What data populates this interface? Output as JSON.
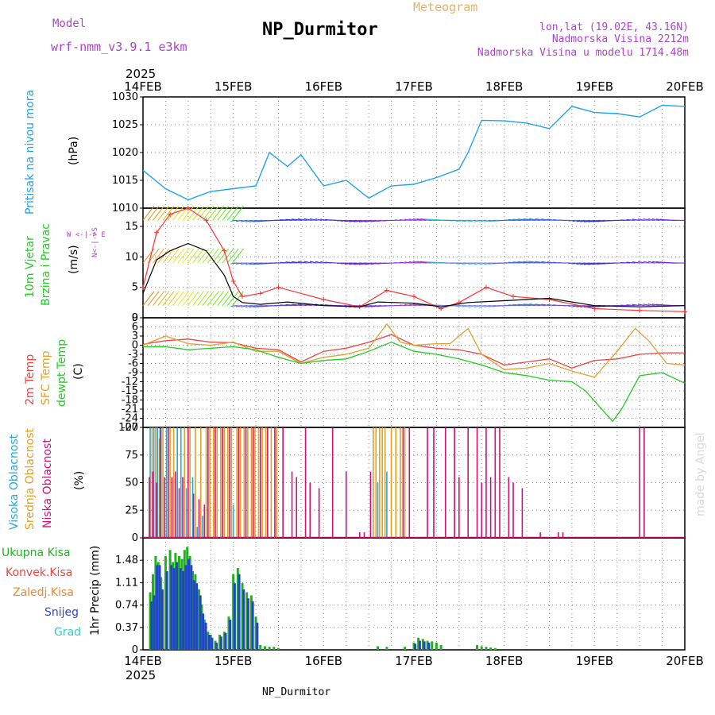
{
  "header": {
    "model_label": "Model",
    "model_name": "wrf-nmm_v3.9.1 e3km",
    "station": "NP_Durmitor",
    "product": "Meteogram",
    "lonlat": "lon,lat (19.02E, 43.16N)",
    "elevation": "Nadmorska Visina 2212m",
    "model_elevation": "Nadmorska Visina u modelu 1714.48m",
    "footer_station": "NP_Durmitor",
    "watermark": "made by Angel"
  },
  "time_axis": {
    "year": "2025",
    "labels": [
      "14FEB",
      "15FEB",
      "16FEB",
      "17FEB",
      "18FEB",
      "19FEB",
      "20FEB"
    ]
  },
  "colors": {
    "pressure": "#1fa3e8",
    "wind_speed": "#000000",
    "wind_gust": "#ff3030",
    "t2m": "#ee4444",
    "tsfc": "#e0a030",
    "dewpoint": "#22cc22",
    "high_cloud": "#22a8e0",
    "mid_cloud": "#e0a020",
    "low_cloud": "#cc1177",
    "precip_total": "#22b022",
    "precip_snow": "#2244cc",
    "title_purple": "#aa44cc",
    "meteogram_orange": "#e8b060"
  },
  "chart_data": [
    {
      "type": "line",
      "title": "Pritisak na nivou mora",
      "ylabel": "(hPa)",
      "ylim": [
        1010,
        1030
      ],
      "yticks": [
        "1030",
        "1025",
        "1020",
        "1015",
        "1010"
      ],
      "x_days": [
        0,
        0.25,
        0.5,
        0.75,
        1.0,
        1.25,
        1.4,
        1.6,
        1.75,
        2.0,
        2.25,
        2.5,
        2.75,
        3.0,
        3.25,
        3.5,
        3.6,
        3.75,
        4.0,
        4.25,
        4.5,
        4.75,
        5.0,
        5.25,
        5.5,
        5.75,
        6.0
      ],
      "values": [
        1016.8,
        1013.5,
        1011.5,
        1013.0,
        1013.5,
        1014.0,
        1020.0,
        1017.5,
        1019.6,
        1014.0,
        1015.0,
        1011.8,
        1014.0,
        1014.3,
        1015.5,
        1017.0,
        1020.0,
        1025.8,
        1025.7,
        1025.3,
        1024.3,
        1028.3,
        1027.2,
        1027.0,
        1026.4,
        1028.5,
        1028.3
      ]
    },
    {
      "type": "line",
      "title": "10m Vjetar Brzina i Pravac",
      "ylabel": "(m/s)",
      "ylim": [
        0,
        18
      ],
      "yticks": [
        "15",
        "10",
        "5",
        "0"
      ],
      "legend": "N, W E, S",
      "series": [
        {
          "name": "speed",
          "x_days": [
            0,
            0.15,
            0.3,
            0.5,
            0.7,
            0.9,
            1.0,
            1.1,
            1.3,
            1.6,
            2.0,
            2.4,
            2.6,
            3.0,
            3.3,
            3.6,
            4.0,
            4.5,
            5.0,
            5.5,
            6.0
          ],
          "values": [
            4.0,
            9.5,
            11.0,
            12.2,
            11.0,
            7.0,
            3.5,
            2.5,
            2.2,
            2.6,
            2.0,
            1.8,
            2.6,
            2.4,
            1.8,
            2.5,
            2.8,
            3.2,
            2.0,
            1.8,
            2.0
          ]
        },
        {
          "name": "gust",
          "x_days": [
            0,
            0.15,
            0.3,
            0.5,
            0.7,
            0.9,
            1.0,
            1.1,
            1.3,
            1.5,
            2.0,
            2.4,
            2.7,
            3.0,
            3.3,
            3.5,
            3.8,
            4.1,
            4.5,
            5.0,
            5.5,
            6.0
          ],
          "values": [
            5.0,
            14.0,
            17.0,
            18.0,
            16.0,
            11.0,
            6.0,
            3.5,
            4.0,
            5.0,
            3.0,
            1.8,
            4.5,
            3.5,
            1.5,
            2.5,
            5.0,
            3.5,
            3.0,
            1.5,
            1.2,
            1.0
          ]
        }
      ],
      "barb_rows": [
        "top",
        "middle",
        "bottom"
      ]
    },
    {
      "type": "line",
      "title": "2m Temp / SFC Temp / dewpt Temp",
      "ylabel": "(C)",
      "ylim": [
        -27,
        9
      ],
      "yticks": [
        "9",
        "6",
        "3",
        "0",
        "-3",
        "-6",
        "-9",
        "-12",
        "-15",
        "-18",
        "-21",
        "-24",
        "-27"
      ],
      "series": [
        {
          "name": "2m Temp",
          "x_days": [
            0,
            0.25,
            0.5,
            0.75,
            1.0,
            1.25,
            1.5,
            1.75,
            2.0,
            2.25,
            2.5,
            2.75,
            3.0,
            3.25,
            3.5,
            3.75,
            4.0,
            4.25,
            4.5,
            4.75,
            5.0,
            5.25,
            5.5,
            5.75,
            6.0
          ],
          "values": [
            0.3,
            1.5,
            2.0,
            1.0,
            0.8,
            -1.0,
            -1.5,
            -5.5,
            -2.0,
            -1.0,
            1.0,
            3.5,
            0.0,
            -1.0,
            -1.5,
            -3.0,
            -6.5,
            -5.5,
            -4.5,
            -7.5,
            -5.0,
            -4.5,
            -3.0,
            -2.5,
            -2.5
          ]
        },
        {
          "name": "SFC Temp",
          "x_days": [
            0,
            0.25,
            0.5,
            0.75,
            1.0,
            1.25,
            1.5,
            1.75,
            2.0,
            2.25,
            2.5,
            2.7,
            2.85,
            3.0,
            3.25,
            3.4,
            3.6,
            3.75,
            4.0,
            4.25,
            4.5,
            4.75,
            5.0,
            5.25,
            5.45,
            5.6,
            5.8,
            6.0
          ],
          "values": [
            0.0,
            3.0,
            0.5,
            0.0,
            1.0,
            -2.0,
            -2.0,
            -6.0,
            -4.0,
            -3.0,
            -1.0,
            7.0,
            1.0,
            0.0,
            0.5,
            0.5,
            5.5,
            -3.0,
            -8.0,
            -7.5,
            -6.0,
            -8.5,
            -10.5,
            -2.0,
            5.5,
            1.5,
            -6.0,
            -6.5
          ]
        },
        {
          "name": "dewpt Temp",
          "x_days": [
            0,
            0.25,
            0.5,
            0.75,
            1.0,
            1.25,
            1.5,
            1.75,
            2.0,
            2.25,
            2.5,
            2.75,
            3.0,
            3.25,
            3.5,
            3.75,
            4.0,
            4.25,
            4.5,
            4.75,
            4.9,
            5.05,
            5.2,
            5.3,
            5.5,
            5.75,
            6.0
          ],
          "values": [
            -0.5,
            -0.5,
            -1.5,
            -1.0,
            -0.5,
            -1.5,
            -4.0,
            -6.0,
            -5.0,
            -4.5,
            -2.0,
            1.0,
            -2.0,
            -3.0,
            -4.5,
            -6.5,
            -9.0,
            -10.0,
            -11.5,
            -12.0,
            -15.0,
            -20.0,
            -25.0,
            -21.0,
            -10.0,
            -9.0,
            -12.5
          ]
        }
      ]
    },
    {
      "type": "bar",
      "title": "Visoka / Srednja / Niska Oblacnost",
      "ylabel": "(%)",
      "ylim": [
        0,
        100
      ],
      "yticks": [
        "100",
        "75",
        "50",
        "25",
        "0"
      ],
      "series": [
        {
          "name": "Visoka Oblacnost",
          "x_days": [
            0.08,
            0.12,
            0.16,
            0.2,
            0.26,
            0.38,
            0.42,
            0.48,
            0.55,
            0.6,
            0.66,
            1.0,
            2.6,
            2.7
          ],
          "values": [
            100,
            100,
            100,
            100,
            100,
            100,
            100,
            45,
            55,
            10,
            20,
            30,
            50,
            60
          ]
        },
        {
          "name": "Srednja Oblacnost",
          "x_days": [
            0.1,
            0.14,
            0.18,
            0.22,
            0.3,
            0.34,
            0.46,
            0.52,
            0.58,
            0.64,
            0.7,
            0.74,
            0.78,
            0.82,
            0.86,
            0.9,
            0.94,
            0.98,
            1.04,
            1.08,
            1.12,
            1.16,
            1.2,
            1.24,
            1.28,
            1.32,
            1.36,
            1.42,
            1.48,
            2.55,
            2.58,
            2.62,
            2.65,
            2.68,
            2.75,
            2.8,
            2.85,
            2.9
          ],
          "values": [
            100,
            100,
            90,
            100,
            100,
            100,
            100,
            100,
            100,
            100,
            100,
            100,
            100,
            100,
            100,
            100,
            100,
            100,
            100,
            100,
            100,
            100,
            100,
            100,
            100,
            100,
            100,
            100,
            100,
            100,
            100,
            100,
            100,
            100,
            100,
            100,
            100,
            100
          ]
        },
        {
          "name": "Niska Oblacnost",
          "x_days": [
            0.07,
            0.11,
            0.15,
            0.19,
            0.24,
            0.28,
            0.32,
            0.36,
            0.4,
            0.44,
            0.5,
            0.56,
            0.62,
            0.68,
            0.72,
            0.8,
            0.88,
            0.96,
            1.06,
            1.14,
            1.22,
            1.3,
            1.38,
            1.46,
            1.55,
            1.65,
            1.7,
            1.8,
            1.85,
            1.95,
            2.1,
            2.25,
            2.4,
            2.45,
            2.52,
            2.88,
            2.95,
            3.15,
            3.22,
            3.35,
            3.45,
            3.5,
            3.6,
            3.7,
            3.75,
            3.8,
            3.85,
            3.9,
            3.95,
            4.05,
            4.1,
            4.2,
            4.4,
            4.6,
            4.65,
            5.5,
            5.55
          ],
          "values": [
            55,
            60,
            50,
            100,
            55,
            100,
            55,
            60,
            45,
            55,
            100,
            40,
            35,
            30,
            100,
            100,
            100,
            100,
            100,
            100,
            100,
            100,
            100,
            100,
            100,
            60,
            55,
            100,
            50,
            45,
            100,
            60,
            5,
            5,
            60,
            100,
            100,
            100,
            100,
            100,
            100,
            55,
            100,
            100,
            50,
            100,
            55,
            100,
            100,
            55,
            50,
            45,
            5,
            5,
            5,
            100,
            100
          ]
        }
      ]
    },
    {
      "type": "bar",
      "title": "Ukupna Kisa / Konvek.Kisa / Zaledj.Kisa / Snijeg / Grad",
      "ylabel": "1hr Precip (mm)",
      "ylim": [
        0,
        1.85
      ],
      "yticks": [
        "1.48",
        "1.11",
        "0.74",
        "0.37",
        "0"
      ],
      "series": [
        {
          "name": "Ukupna Kisa",
          "x_days": [
            0.08,
            0.11,
            0.14,
            0.17,
            0.2,
            0.25,
            0.3,
            0.33,
            0.36,
            0.4,
            0.43,
            0.46,
            0.49,
            0.52,
            0.55,
            0.58,
            0.62,
            0.65,
            0.68,
            0.72,
            0.75,
            0.8,
            0.85,
            0.9,
            0.95,
            1.0,
            1.05,
            1.1,
            1.15,
            1.2,
            1.25,
            1.3,
            1.35,
            1.4,
            1.45,
            1.5,
            2.6,
            2.7,
            2.9,
            3.0,
            3.05,
            3.1,
            3.15,
            3.2,
            3.25,
            3.3,
            3.7,
            3.75,
            3.8,
            3.85,
            3.9
          ],
          "values": [
            0.95,
            1.25,
            1.55,
            1.45,
            1.2,
            1.55,
            1.65,
            1.45,
            1.6,
            1.55,
            1.5,
            1.65,
            1.7,
            1.55,
            1.3,
            1.25,
            1.0,
            0.75,
            0.5,
            0.3,
            0.25,
            0.15,
            0.25,
            0.3,
            0.55,
            1.25,
            1.35,
            1.1,
            0.95,
            0.9,
            0.55,
            0.08,
            0.06,
            0.05,
            0.05,
            0.03,
            0.06,
            0.05,
            0.05,
            0.12,
            0.2,
            0.18,
            0.15,
            0.14,
            0.12,
            0.08,
            0.08,
            0.06,
            0.05,
            0.04,
            0.03
          ]
        },
        {
          "name": "Snijeg",
          "x_days": [
            0.095,
            0.125,
            0.155,
            0.185,
            0.215,
            0.265,
            0.315,
            0.345,
            0.375,
            0.415,
            0.445,
            0.475,
            0.505,
            0.535,
            0.565,
            0.595,
            0.635,
            0.665,
            0.695,
            0.735,
            0.765,
            0.815,
            0.865,
            0.915,
            0.965,
            1.015,
            1.065,
            1.115,
            1.165,
            1.215,
            1.265,
            3.015,
            3.065,
            3.115,
            3.165
          ],
          "values": [
            0.8,
            0.9,
            1.4,
            1.4,
            1.0,
            1.3,
            1.4,
            1.35,
            1.45,
            1.35,
            1.3,
            1.4,
            1.5,
            1.4,
            1.15,
            1.1,
            0.9,
            0.6,
            0.45,
            0.25,
            0.2,
            0.12,
            0.22,
            0.28,
            0.5,
            1.1,
            1.25,
            1.0,
            0.85,
            0.8,
            0.45,
            0.1,
            0.15,
            0.14,
            0.12
          ]
        }
      ]
    }
  ],
  "panels": {
    "pressure": {
      "title": "Pritisak na nivou mora",
      "unit": "(hPa)"
    },
    "wind": {
      "title1": "10m Vjetar",
      "title2": "Brzina i Pravac",
      "unit": "(m/s)",
      "compass_ns": "N<-|->S",
      "compass_we": "W <-|-> E",
      "compass_n": "N",
      "compass_s": "S",
      "compass_w": "W",
      "compass_e": "E"
    },
    "temp": {
      "t2m": "2m Temp",
      "tsfc": "SFC Temp",
      "td": "dewpt Temp",
      "unit": "(C)"
    },
    "cloud": {
      "high": "Visoka Oblacnost",
      "mid": "Srednja Oblacnost",
      "low": "Niska Oblacnost",
      "unit": "(%)"
    },
    "precip": {
      "total": "Ukupna Kisa",
      "conv": "Konvek.Kisa",
      "frz": "Zaledj.Kisa",
      "snow": "Snijeg",
      "hail": "Grad",
      "unit": "1hr Precip (mm)"
    }
  }
}
